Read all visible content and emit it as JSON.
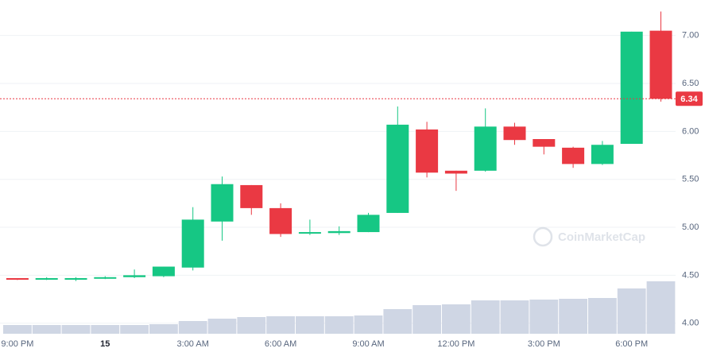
{
  "chart_data": {
    "type": "candlestick",
    "categories": [
      "9:00 PM",
      null,
      null,
      "15",
      null,
      null,
      "3:00 AM",
      null,
      null,
      "6:00 AM",
      null,
      null,
      "9:00 AM",
      null,
      null,
      "12:00 PM",
      null,
      null,
      "3:00 PM",
      null,
      null,
      "6:00 PM",
      null
    ],
    "open": [
      4.47,
      4.46,
      4.47,
      4.47,
      4.48,
      4.49,
      4.58,
      5.06,
      5.44,
      5.2,
      4.94,
      4.94,
      4.95,
      5.15,
      6.02,
      5.59,
      5.59,
      6.05,
      5.92,
      5.83,
      5.66,
      5.87,
      7.05
    ],
    "high": [
      4.47,
      4.48,
      4.48,
      4.49,
      4.56,
      4.59,
      5.21,
      5.53,
      5.44,
      5.25,
      5.08,
      5.01,
      5.15,
      6.26,
      6.1,
      5.59,
      6.24,
      6.09,
      5.92,
      5.84,
      5.9,
      7.04,
      7.25
    ],
    "low": [
      4.45,
      4.45,
      4.44,
      4.46,
      4.47,
      4.48,
      4.55,
      4.86,
      5.13,
      4.9,
      4.92,
      4.92,
      4.95,
      5.15,
      5.52,
      5.38,
      5.58,
      5.86,
      5.76,
      5.62,
      5.65,
      5.87,
      6.31
    ],
    "close": [
      4.46,
      4.47,
      4.47,
      4.48,
      4.5,
      4.59,
      5.08,
      5.45,
      5.2,
      4.93,
      4.95,
      4.96,
      5.13,
      6.07,
      5.57,
      5.56,
      6.05,
      5.91,
      5.84,
      5.66,
      5.86,
      7.04,
      6.34
    ],
    "volume": [
      11,
      11,
      11,
      11,
      11,
      12,
      16,
      19,
      21,
      22,
      22,
      22,
      23,
      31,
      36,
      37,
      42,
      42,
      43,
      44,
      45,
      57,
      66
    ],
    "volume_lim": [
      0,
      420
    ],
    "up_color": "#16c784",
    "down_color": "#ea3943",
    "volume_color": "#cfd6e4",
    "ylim": [
      3.89,
      7.37
    ],
    "yticks": [
      {
        "value": 4,
        "label": "4.00"
      },
      {
        "value": 4.5,
        "label": "4.50"
      },
      {
        "value": 5,
        "label": "5.00"
      },
      {
        "value": 5.5,
        "label": "5.50"
      },
      {
        "value": 6,
        "label": "6.00"
      },
      {
        "value": 6.5,
        "label": "6.50"
      },
      {
        "value": 7,
        "label": "7.00"
      }
    ],
    "grid": true,
    "current_price": {
      "value": 6.34,
      "label": "6.34"
    },
    "watermark": "CoinMarketCap"
  }
}
